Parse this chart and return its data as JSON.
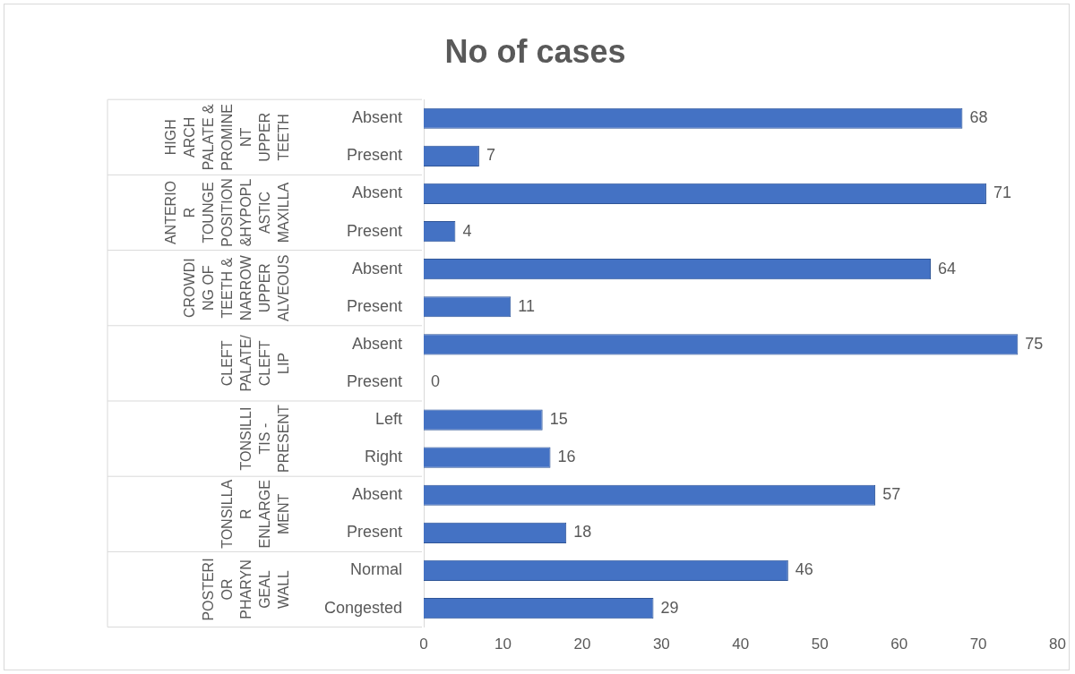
{
  "chart_data": {
    "type": "bar",
    "orientation": "horizontal",
    "title": "No of cases",
    "categories": [
      "Absent",
      "Present",
      "Absent",
      "Present",
      "Absent",
      "Present",
      "Absent",
      "Present",
      "Left",
      "Right",
      "Absent",
      "Present",
      "Normal",
      "Congested"
    ],
    "values": [
      68,
      7,
      71,
      4,
      64,
      11,
      75,
      0,
      15,
      16,
      57,
      18,
      46,
      29
    ],
    "color": "#4472c4",
    "xlim": [
      0,
      80
    ],
    "xticks": [
      0,
      10,
      20,
      30,
      40,
      50,
      60,
      70,
      80
    ],
    "grid": false,
    "legend": false,
    "data_labels": true,
    "annotations": [
      "HIGH ARCH PALATE & PROMINENT UPPER TEETH",
      "ANTERIOR TOUNGE POSITION &HYPOPLASTIC MAXILLA",
      "CROWDING OF TEETH & NARROW UPPER ALVEOUS",
      "CLEFT PALATE/ CLEFT LIP",
      "TONSILLITIS - PRESENT",
      "TONSILLAR ENLARGEMENT",
      "POSTERIOR PHARYNGEAL WALL"
    ]
  }
}
